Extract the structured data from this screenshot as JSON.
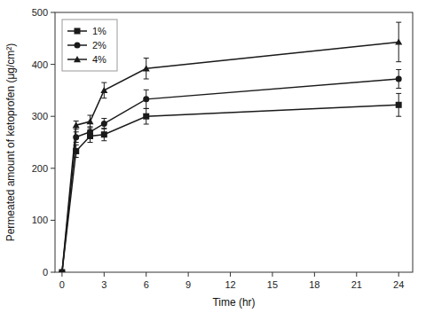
{
  "chart_data": {
    "type": "line",
    "xlabel": "Time (hr)",
    "ylabel": "Permeated amount of ketoprofen (μg/cm²)",
    "x": [
      0,
      1,
      2,
      3,
      6,
      24
    ],
    "series": [
      {
        "name": "1%",
        "color": "#1a1a1a",
        "marker": "square",
        "values": [
          0,
          233,
          262,
          265,
          300,
          322
        ],
        "errors": [
          0,
          12,
          12,
          12,
          15,
          22
        ]
      },
      {
        "name": "2%",
        "color": "#1a1a1a",
        "marker": "circle",
        "values": [
          0,
          260,
          270,
          286,
          333,
          372
        ],
        "errors": [
          0,
          10,
          10,
          10,
          18,
          18
        ]
      },
      {
        "name": "4%",
        "color": "#1a1a1a",
        "marker": "triangle",
        "values": [
          0,
          283,
          290,
          350,
          392,
          443
        ],
        "errors": [
          0,
          8,
          12,
          15,
          20,
          38
        ]
      }
    ],
    "xlim": [
      -0.5,
      25
    ],
    "ylim": [
      0,
      500
    ],
    "xticks": [
      0,
      3,
      6,
      9,
      12,
      15,
      18,
      21,
      24
    ],
    "yticks": [
      0,
      100,
      200,
      300,
      400,
      500
    ],
    "grid": false,
    "legend": "upper left"
  }
}
